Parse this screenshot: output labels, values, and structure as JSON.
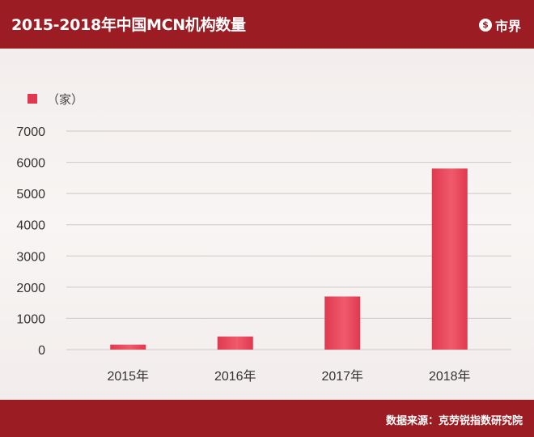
{
  "header": {
    "title": "2015-2018年中国MCN机构数量",
    "brand": "市界"
  },
  "footer": {
    "source": "数据来源：克劳锐指数研究院"
  },
  "colors": {
    "header_bg": "#9b1c22",
    "bar": "#e0394f",
    "bar_light": "#f05a6c",
    "grid": "#cfc8c7"
  },
  "chart_data": {
    "type": "bar",
    "categories": [
      "2015年",
      "2016年",
      "2017年",
      "2018年"
    ],
    "series": [
      {
        "name": "（家）",
        "values": [
          160,
          420,
          1700,
          5800
        ]
      }
    ],
    "ylim": [
      0,
      7000
    ],
    "yticks": [
      0,
      1000,
      2000,
      3000,
      4000,
      5000,
      6000,
      7000
    ],
    "grid": true,
    "legend_position": "top-left",
    "title": "",
    "xlabel": "",
    "ylabel": ""
  }
}
